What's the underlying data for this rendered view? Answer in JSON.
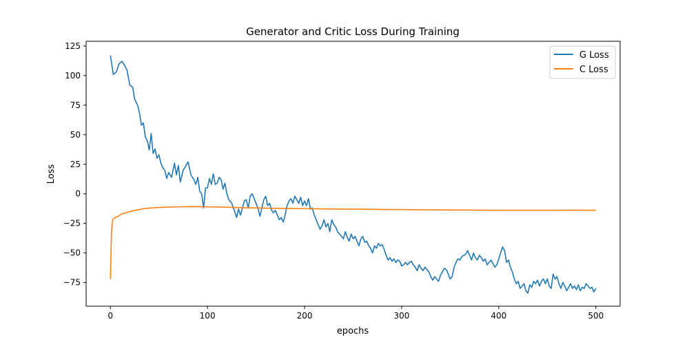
{
  "chart_data": {
    "type": "line",
    "title": "Generator and Critic Loss During Training",
    "xlabel": "epochs",
    "ylabel": "Loss",
    "xlim": [
      -25,
      525
    ],
    "ylim": [
      -95,
      129
    ],
    "xticks": [
      0,
      100,
      200,
      300,
      400,
      500
    ],
    "yticks": [
      -75,
      -50,
      -25,
      0,
      25,
      50,
      75,
      100,
      125
    ],
    "grid": false,
    "legend_position": "top-right",
    "series": [
      {
        "name": "G Loss",
        "color": "#1f77b4",
        "points": [
          [
            0,
            117
          ],
          [
            3,
            101
          ],
          [
            6,
            103
          ],
          [
            9,
            110
          ],
          [
            12,
            112
          ],
          [
            15,
            108
          ],
          [
            17,
            105
          ],
          [
            20,
            92
          ],
          [
            23,
            90
          ],
          [
            25,
            80
          ],
          [
            28,
            75
          ],
          [
            30,
            68
          ],
          [
            32,
            58
          ],
          [
            34,
            60
          ],
          [
            36,
            48
          ],
          [
            38,
            45
          ],
          [
            40,
            37
          ],
          [
            42,
            51
          ],
          [
            44,
            34
          ],
          [
            46,
            38
          ],
          [
            48,
            30
          ],
          [
            50,
            33
          ],
          [
            52,
            26
          ],
          [
            54,
            22
          ],
          [
            56,
            20
          ],
          [
            58,
            13
          ],
          [
            60,
            18
          ],
          [
            63,
            14
          ],
          [
            66,
            26
          ],
          [
            68,
            16
          ],
          [
            70,
            24
          ],
          [
            72,
            10
          ],
          [
            75,
            20
          ],
          [
            78,
            24
          ],
          [
            80,
            27
          ],
          [
            83,
            16
          ],
          [
            86,
            12
          ],
          [
            88,
            8
          ],
          [
            90,
            14
          ],
          [
            92,
            2
          ],
          [
            94,
            0
          ],
          [
            96,
            -12
          ],
          [
            98,
            5
          ],
          [
            100,
            5
          ],
          [
            102,
            13
          ],
          [
            104,
            8
          ],
          [
            106,
            17
          ],
          [
            108,
            8
          ],
          [
            110,
            9
          ],
          [
            112,
            14
          ],
          [
            114,
            12
          ],
          [
            116,
            4
          ],
          [
            118,
            9
          ],
          [
            120,
            0
          ],
          [
            122,
            -5
          ],
          [
            125,
            -8
          ],
          [
            128,
            -15
          ],
          [
            130,
            -20
          ],
          [
            132,
            -13
          ],
          [
            134,
            -18
          ],
          [
            136,
            -12
          ],
          [
            138,
            -6
          ],
          [
            140,
            -5
          ],
          [
            142,
            -12
          ],
          [
            144,
            -2
          ],
          [
            146,
            0
          ],
          [
            148,
            -4
          ],
          [
            150,
            -8
          ],
          [
            152,
            -12
          ],
          [
            154,
            -19
          ],
          [
            156,
            -12
          ],
          [
            158,
            -5
          ],
          [
            160,
            -2
          ],
          [
            162,
            -10
          ],
          [
            164,
            -8
          ],
          [
            166,
            -14
          ],
          [
            168,
            -16
          ],
          [
            170,
            -14
          ],
          [
            172,
            -18
          ],
          [
            174,
            -22
          ],
          [
            176,
            -20
          ],
          [
            178,
            -24
          ],
          [
            180,
            -18
          ],
          [
            182,
            -10
          ],
          [
            184,
            -6
          ],
          [
            186,
            -4
          ],
          [
            188,
            -8
          ],
          [
            190,
            -2
          ],
          [
            192,
            -5
          ],
          [
            194,
            -8
          ],
          [
            196,
            -3
          ],
          [
            198,
            -10
          ],
          [
            200,
            -6
          ],
          [
            202,
            -10
          ],
          [
            204,
            -4
          ],
          [
            206,
            -13
          ],
          [
            208,
            -12
          ],
          [
            210,
            -18
          ],
          [
            212,
            -22
          ],
          [
            214,
            -26
          ],
          [
            216,
            -30
          ],
          [
            218,
            -27
          ],
          [
            220,
            -22
          ],
          [
            222,
            -28
          ],
          [
            224,
            -25
          ],
          [
            226,
            -32
          ],
          [
            228,
            -22
          ],
          [
            230,
            -26
          ],
          [
            232,
            -28
          ],
          [
            234,
            -32
          ],
          [
            236,
            -34
          ],
          [
            238,
            -36
          ],
          [
            240,
            -38
          ],
          [
            242,
            -32
          ],
          [
            244,
            -37
          ],
          [
            246,
            -40
          ],
          [
            248,
            -34
          ],
          [
            250,
            -38
          ],
          [
            252,
            -36
          ],
          [
            254,
            -40
          ],
          [
            256,
            -44
          ],
          [
            258,
            -38
          ],
          [
            260,
            -36
          ],
          [
            262,
            -41
          ],
          [
            264,
            -40
          ],
          [
            266,
            -44
          ],
          [
            268,
            -46
          ],
          [
            270,
            -50
          ],
          [
            272,
            -44
          ],
          [
            274,
            -46
          ],
          [
            276,
            -42
          ],
          [
            278,
            -44
          ],
          [
            280,
            -43
          ],
          [
            282,
            -47
          ],
          [
            284,
            -52
          ],
          [
            286,
            -56
          ],
          [
            288,
            -54
          ],
          [
            290,
            -57
          ],
          [
            292,
            -55
          ],
          [
            294,
            -58
          ],
          [
            296,
            -56
          ],
          [
            298,
            -57
          ],
          [
            300,
            -61
          ],
          [
            302,
            -60
          ],
          [
            304,
            -58
          ],
          [
            306,
            -60
          ],
          [
            308,
            -58
          ],
          [
            310,
            -57
          ],
          [
            312,
            -60
          ],
          [
            314,
            -62
          ],
          [
            316,
            -65
          ],
          [
            318,
            -60
          ],
          [
            320,
            -63
          ],
          [
            322,
            -65
          ],
          [
            324,
            -62
          ],
          [
            326,
            -64
          ],
          [
            328,
            -66
          ],
          [
            330,
            -70
          ],
          [
            332,
            -73
          ],
          [
            334,
            -70
          ],
          [
            336,
            -72
          ],
          [
            338,
            -74
          ],
          [
            340,
            -69
          ],
          [
            342,
            -66
          ],
          [
            344,
            -63
          ],
          [
            346,
            -64
          ],
          [
            348,
            -68
          ],
          [
            350,
            -72
          ],
          [
            352,
            -70
          ],
          [
            354,
            -62
          ],
          [
            356,
            -58
          ],
          [
            358,
            -55
          ],
          [
            360,
            -56
          ],
          [
            362,
            -53
          ],
          [
            364,
            -52
          ],
          [
            366,
            -51
          ],
          [
            368,
            -48
          ],
          [
            370,
            -52
          ],
          [
            372,
            -56
          ],
          [
            374,
            -50
          ],
          [
            376,
            -54
          ],
          [
            378,
            -56
          ],
          [
            380,
            -52
          ],
          [
            382,
            -54
          ],
          [
            384,
            -57
          ],
          [
            386,
            -55
          ],
          [
            388,
            -60
          ],
          [
            390,
            -58
          ],
          [
            392,
            -56
          ],
          [
            394,
            -59
          ],
          [
            396,
            -62
          ],
          [
            398,
            -60
          ],
          [
            400,
            -55
          ],
          [
            402,
            -50
          ],
          [
            404,
            -45
          ],
          [
            406,
            -48
          ],
          [
            408,
            -58
          ],
          [
            410,
            -56
          ],
          [
            412,
            -62
          ],
          [
            414,
            -66
          ],
          [
            416,
            -72
          ],
          [
            418,
            -76
          ],
          [
            420,
            -74
          ],
          [
            422,
            -80
          ],
          [
            424,
            -78
          ],
          [
            426,
            -76
          ],
          [
            428,
            -82
          ],
          [
            430,
            -84
          ],
          [
            432,
            -77
          ],
          [
            434,
            -79
          ],
          [
            436,
            -74
          ],
          [
            438,
            -76
          ],
          [
            440,
            -73
          ],
          [
            442,
            -78
          ],
          [
            444,
            -74
          ],
          [
            446,
            -72
          ],
          [
            448,
            -76
          ],
          [
            450,
            -72
          ],
          [
            452,
            -78
          ],
          [
            454,
            -80
          ],
          [
            456,
            -68
          ],
          [
            458,
            -72
          ],
          [
            460,
            -70
          ],
          [
            462,
            -76
          ],
          [
            464,
            -80
          ],
          [
            466,
            -75
          ],
          [
            468,
            -78
          ],
          [
            470,
            -82
          ],
          [
            472,
            -79
          ],
          [
            474,
            -76
          ],
          [
            476,
            -80
          ],
          [
            478,
            -78
          ],
          [
            480,
            -81
          ],
          [
            482,
            -77
          ],
          [
            484,
            -82
          ],
          [
            486,
            -79
          ],
          [
            488,
            -80
          ],
          [
            490,
            -76
          ],
          [
            492,
            -78
          ],
          [
            494,
            -80
          ],
          [
            496,
            -79
          ],
          [
            498,
            -83
          ],
          [
            500,
            -80
          ]
        ]
      },
      {
        "name": "C Loss",
        "color": "#ff7f0e",
        "points": [
          [
            0,
            -72
          ],
          [
            1,
            -35
          ],
          [
            2,
            -24
          ],
          [
            3,
            -21
          ],
          [
            5,
            -20
          ],
          [
            8,
            -19
          ],
          [
            12,
            -17
          ],
          [
            18,
            -15.5
          ],
          [
            25,
            -14
          ],
          [
            35,
            -12.5
          ],
          [
            45,
            -11.8
          ],
          [
            55,
            -11.3
          ],
          [
            70,
            -11
          ],
          [
            85,
            -10.8
          ],
          [
            100,
            -11
          ],
          [
            115,
            -11.2
          ],
          [
            130,
            -11.6
          ],
          [
            145,
            -11.9
          ],
          [
            160,
            -12.1
          ],
          [
            175,
            -12.3
          ],
          [
            190,
            -12.5
          ],
          [
            205,
            -12.6
          ],
          [
            220,
            -12.8
          ],
          [
            240,
            -12.9
          ],
          [
            260,
            -13
          ],
          [
            280,
            -13.2
          ],
          [
            300,
            -13.3
          ],
          [
            320,
            -13.5
          ],
          [
            340,
            -13.6
          ],
          [
            360,
            -13.7
          ],
          [
            380,
            -13.8
          ],
          [
            400,
            -13.9
          ],
          [
            420,
            -13.9
          ],
          [
            440,
            -13.9
          ],
          [
            460,
            -13.9
          ],
          [
            480,
            -13.8
          ],
          [
            500,
            -13.9
          ]
        ]
      }
    ]
  }
}
